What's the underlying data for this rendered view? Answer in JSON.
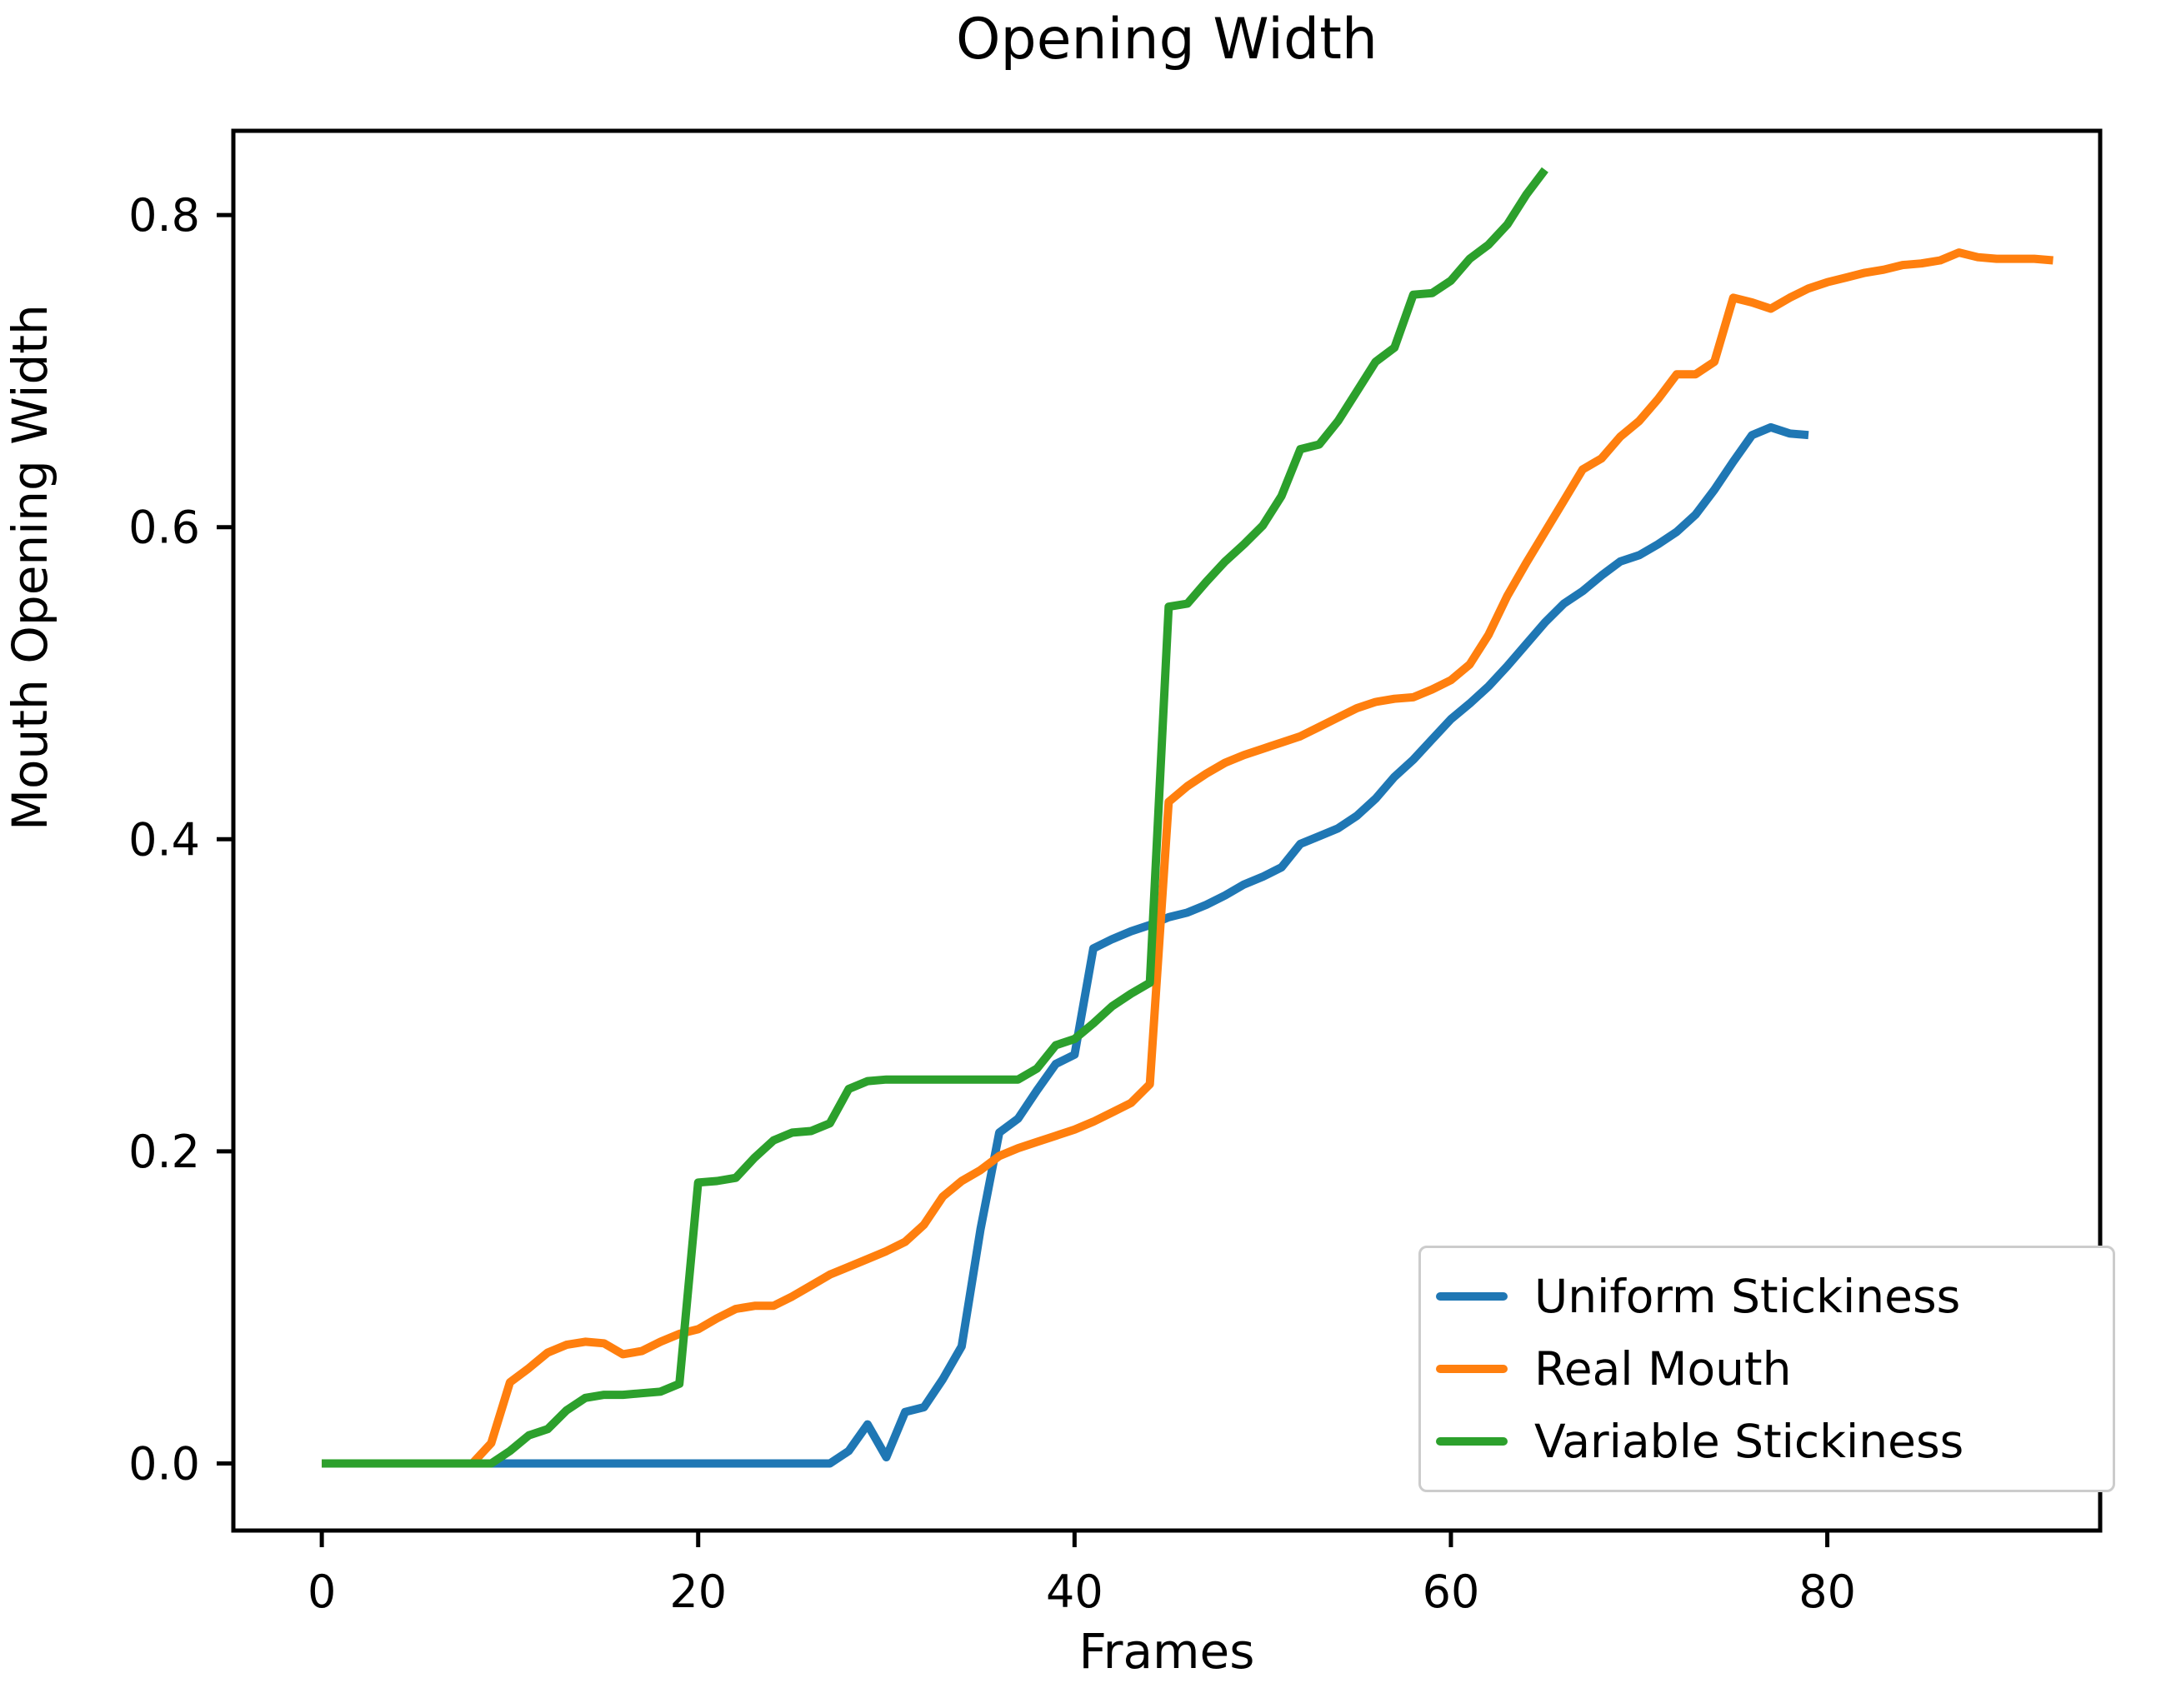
{
  "chart_data": {
    "type": "line",
    "title": "Opening Width",
    "xlabel": "Frames",
    "ylabel": "Mouth Opening Width",
    "xlim": [
      -4.7,
      94.5
    ],
    "ylim": [
      -0.043,
      0.854
    ],
    "xticks": [
      0,
      20,
      40,
      60,
      80
    ],
    "yticks": [
      0.0,
      0.2,
      0.4,
      0.6,
      0.8
    ],
    "ytick_labels": [
      "0.0",
      "0.2",
      "0.4",
      "0.6",
      "0.8"
    ],
    "grid": false,
    "legend_position": "lower right",
    "axis_color": "#000000",
    "legend_border_color": "#cccccc",
    "series": [
      {
        "name": "Uniform Stickiness",
        "color": "#1f77b4",
        "x_start": 0,
        "values": [
          0,
          0,
          0,
          0,
          0,
          0,
          0,
          0,
          0,
          0,
          0,
          0,
          0,
          0,
          0,
          0,
          0,
          0,
          0,
          0,
          0,
          0,
          0,
          0,
          0,
          0,
          0,
          0,
          0.008,
          0.025,
          0.004,
          0.033,
          0.036,
          0.054,
          0.075,
          0.15,
          0.212,
          0.221,
          0.239,
          0.256,
          0.262,
          0.33,
          0.336,
          0.341,
          0.345,
          0.35,
          0.353,
          0.358,
          0.364,
          0.371,
          0.376,
          0.382,
          0.397,
          0.402,
          0.407,
          0.415,
          0.426,
          0.44,
          0.451,
          0.464,
          0.477,
          0.487,
          0.498,
          0.511,
          0.525,
          0.539,
          0.551,
          0.559,
          0.569,
          0.578,
          0.582,
          0.589,
          0.597,
          0.608,
          0.624,
          0.642,
          0.659,
          0.664,
          0.66,
          0.659
        ]
      },
      {
        "name": "Real Mouth",
        "color": "#ff7f0e",
        "x_start": 0,
        "values": [
          0,
          0,
          0,
          0,
          0,
          0,
          0,
          0,
          0,
          0.013,
          0.052,
          0.061,
          0.071,
          0.076,
          0.078,
          0.077,
          0.07,
          0.072,
          0.078,
          0.083,
          0.086,
          0.093,
          0.099,
          0.101,
          0.101,
          0.107,
          0.114,
          0.121,
          0.126,
          0.131,
          0.136,
          0.142,
          0.153,
          0.171,
          0.181,
          0.188,
          0.197,
          0.202,
          0.206,
          0.21,
          0.214,
          0.219,
          0.225,
          0.231,
          0.243,
          0.424,
          0.434,
          0.442,
          0.449,
          0.454,
          0.458,
          0.462,
          0.466,
          0.472,
          0.478,
          0.484,
          0.488,
          0.49,
          0.491,
          0.496,
          0.502,
          0.512,
          0.531,
          0.556,
          0.577,
          0.597,
          0.617,
          0.637,
          0.644,
          0.658,
          0.668,
          0.682,
          0.698,
          0.698,
          0.706,
          0.747,
          0.744,
          0.74,
          0.747,
          0.753,
          0.757,
          0.76,
          0.763,
          0.765,
          0.768,
          0.769,
          0.771,
          0.776,
          0.773,
          0.772,
          0.772,
          0.772,
          0.771
        ]
      },
      {
        "name": "Variable Stickiness",
        "color": "#2ca02c",
        "x_start": 0,
        "values": [
          0,
          0,
          0,
          0,
          0,
          0,
          0,
          0,
          0,
          0,
          0.008,
          0.018,
          0.022,
          0.034,
          0.042,
          0.044,
          0.044,
          0.045,
          0.046,
          0.051,
          0.18,
          0.181,
          0.183,
          0.196,
          0.207,
          0.212,
          0.213,
          0.218,
          0.24,
          0.245,
          0.246,
          0.246,
          0.246,
          0.246,
          0.246,
          0.246,
          0.246,
          0.246,
          0.253,
          0.268,
          0.272,
          0.282,
          0.293,
          0.301,
          0.308,
          0.549,
          0.551,
          0.565,
          0.578,
          0.589,
          0.601,
          0.62,
          0.65,
          0.653,
          0.668,
          0.687,
          0.706,
          0.715,
          0.749,
          0.75,
          0.758,
          0.772,
          0.781,
          0.794,
          0.813,
          0.829
        ]
      }
    ]
  }
}
